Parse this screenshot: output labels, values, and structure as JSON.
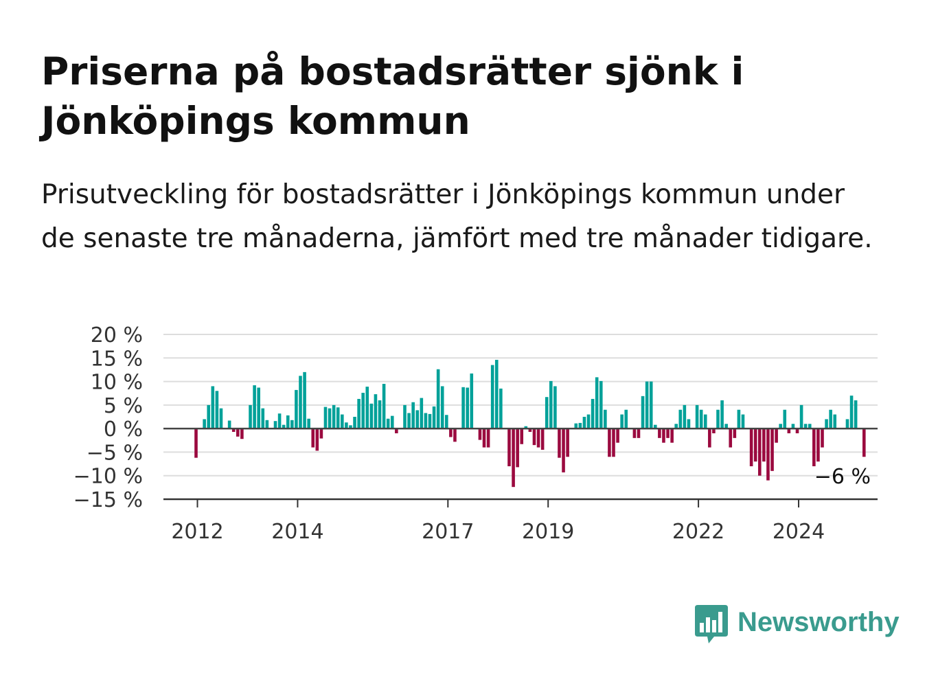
{
  "title": "Priserna på bostadsrätter sjönk i Jönköpings kommun",
  "subtitle": "Prisutveckling för bostadsrätter i Jönköpings kommun under de senaste tre månaderna, jämfört med tre månader tidigare.",
  "brand": {
    "name": "Newsworthy",
    "icon": "newsworthy-logo-icon",
    "color": "#3a9b8e"
  },
  "colors": {
    "positive": "#00a199",
    "negative": "#9b0a3f",
    "grid": "#dddddd",
    "zero_line": "#444444"
  },
  "chart_data": {
    "type": "bar",
    "ylim": [
      -15,
      20
    ],
    "y_ticks": [
      20,
      15,
      10,
      5,
      0,
      -5,
      -10,
      -15
    ],
    "y_tick_labels": [
      "20 %",
      "15 %",
      "10 %",
      "5 %",
      "0 %",
      "−5 %",
      "−10 %",
      "−15 %"
    ],
    "x_ticks": [
      "2012",
      "2014",
      "2017",
      "2019",
      "2022",
      "2024"
    ],
    "last_value_label": "−6 %",
    "grid": true,
    "values": [
      -6.2,
      null,
      2,
      5,
      9,
      8,
      4.3,
      null,
      1.7,
      -0.7,
      -1.7,
      -2.2,
      null,
      5,
      9.2,
      8.7,
      4.3,
      1.8,
      null,
      1.6,
      3.2,
      0.8,
      2.8,
      1.8,
      8.2,
      11.2,
      12,
      2.1,
      -4,
      -4.7,
      -2.1,
      4.6,
      4.3,
      5,
      4.5,
      3,
      1.3,
      0.7,
      2.5,
      6.3,
      7.6,
      8.9,
      5.3,
      7.3,
      6,
      9.5,
      2.1,
      2.7,
      -1,
      null,
      5,
      3.3,
      5.6,
      3.9,
      6.5,
      3.3,
      3.1,
      4.7,
      12.6,
      9,
      2.9,
      -1.8,
      -2.8,
      null,
      8.8,
      8.7,
      11.7,
      null,
      -2.4,
      -4,
      -4,
      13.5,
      14.6,
      8.5,
      null,
      -8,
      -12.4,
      -8.2,
      -3.3,
      0.5,
      -0.7,
      -3.5,
      -4,
      -4.5,
      6.7,
      10.1,
      9,
      -6.2,
      -9.3,
      -6,
      null,
      1.1,
      1.2,
      2.5,
      3,
      6.3,
      10.9,
      10.1,
      4,
      -6,
      -6,
      -3,
      3,
      4,
      null,
      -2,
      -2,
      6.9,
      10,
      10,
      0.8,
      -2,
      -3,
      -2,
      -3,
      1,
      4,
      5,
      2,
      null,
      5,
      4,
      3,
      -4,
      -1,
      4,
      6,
      1,
      -4,
      -2,
      4,
      3,
      null,
      -8,
      -7,
      -10,
      -7,
      -11,
      -9,
      -3,
      1,
      4,
      -1,
      1,
      -1,
      5,
      1,
      1,
      -8,
      -7,
      -4,
      2,
      4,
      3,
      null,
      null,
      2,
      7,
      6,
      null,
      -6
    ]
  }
}
